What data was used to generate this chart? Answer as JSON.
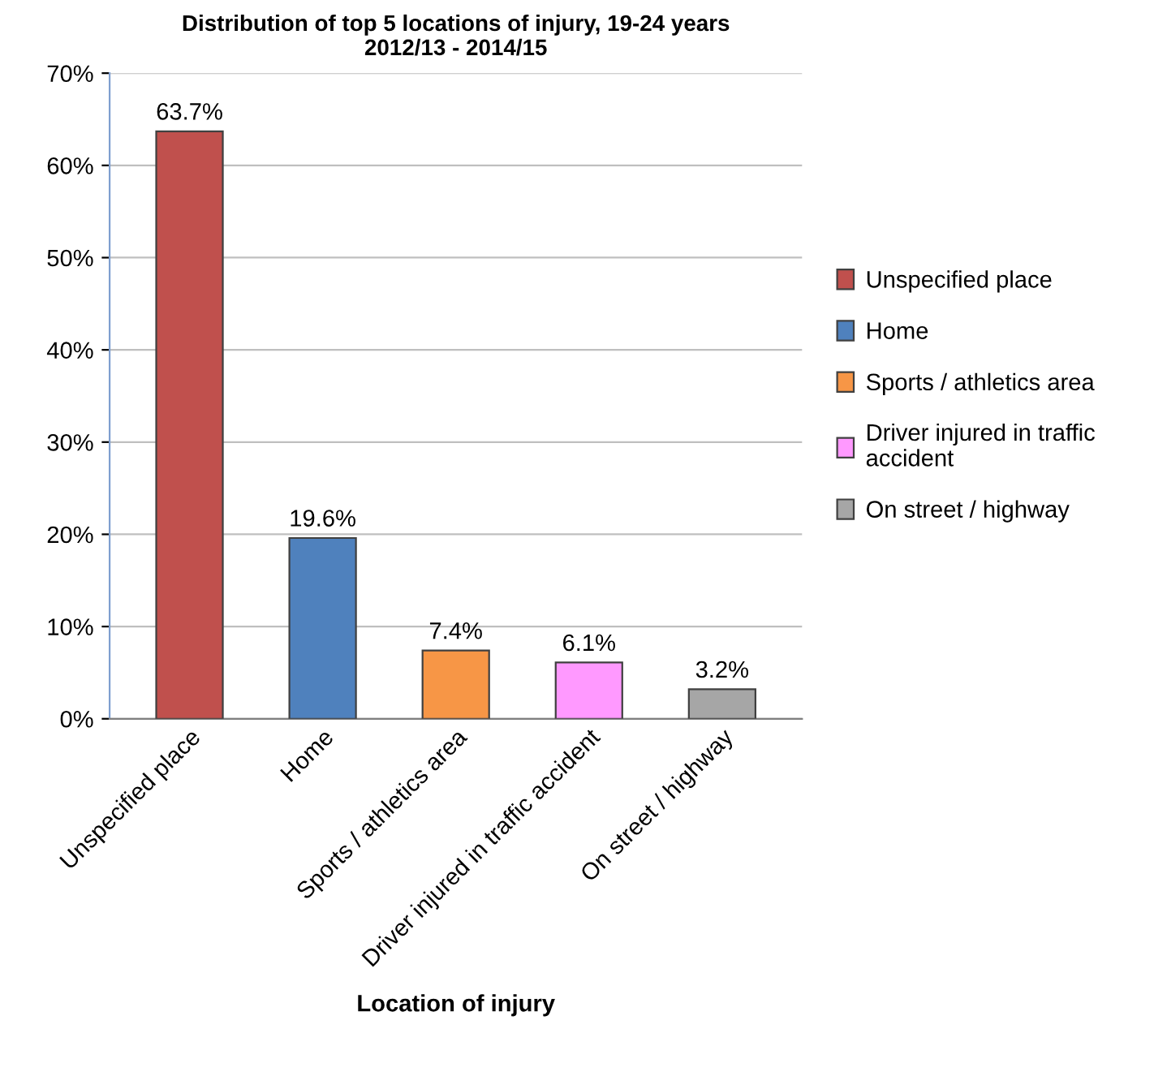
{
  "chart_data": {
    "type": "bar",
    "title": "Distribution of top 5 locations of injury, 19-24 years\n2012/13 - 2014/15",
    "categories": [
      "Unspecified place",
      "Home",
      "Sports / athletics area",
      "Driver injured in traffic accident",
      "On street / highway"
    ],
    "series": [
      {
        "name": "Unspecified place",
        "color": "#c0504d",
        "values": [
          63.7,
          null,
          null,
          null,
          null
        ],
        "value_labels": [
          "63.7%",
          null,
          null,
          null,
          null
        ]
      },
      {
        "name": "Home",
        "color": "#4f81bd",
        "values": [
          null,
          19.6,
          null,
          null,
          null
        ],
        "value_labels": [
          null,
          "19.6%",
          null,
          null,
          null
        ]
      },
      {
        "name": "Sports / athletics area",
        "color": "#f79646",
        "values": [
          null,
          null,
          7.4,
          null,
          null
        ],
        "value_labels": [
          null,
          null,
          "7.4%",
          null,
          null
        ]
      },
      {
        "name": "Driver injured in traffic accident",
        "color": "#ff99ff",
        "values": [
          null,
          null,
          null,
          6.1,
          null
        ],
        "value_labels": [
          null,
          null,
          null,
          "6.1%",
          null
        ]
      },
      {
        "name": "On street / highway",
        "color": "#a6a6a6",
        "values": [
          null,
          null,
          null,
          null,
          3.2
        ],
        "value_labels": [
          null,
          null,
          null,
          null,
          "3.2%"
        ]
      }
    ],
    "xlabel": "Location of injury",
    "ylim": [
      0,
      70
    ],
    "yticks": [
      {
        "value": 0,
        "label": "0%"
      },
      {
        "value": 10,
        "label": "10%"
      },
      {
        "value": 20,
        "label": "20%"
      },
      {
        "value": 30,
        "label": "30%"
      },
      {
        "value": 40,
        "label": "40%"
      },
      {
        "value": 50,
        "label": "50%"
      },
      {
        "value": 60,
        "label": "60%"
      },
      {
        "value": 70,
        "label": "70%"
      }
    ],
    "grid": "y",
    "legend": "right"
  }
}
